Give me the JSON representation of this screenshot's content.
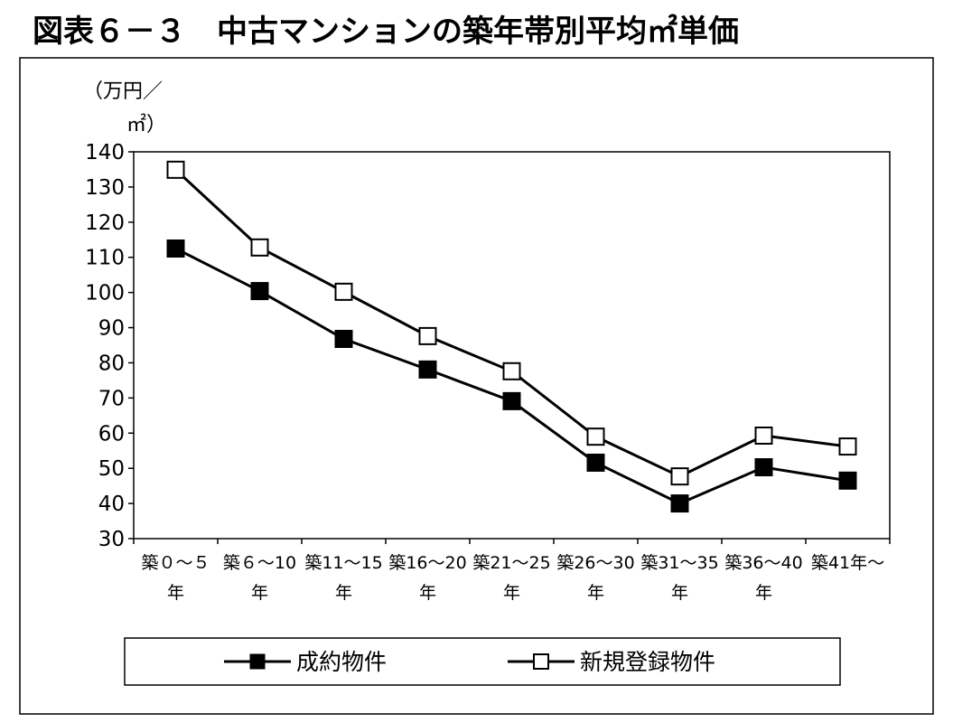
{
  "chart_data": {
    "type": "line",
    "title": "図表６－３　中古マンションの築年帯別平均㎡単価",
    "ylabel": "（万円／㎡）",
    "ylabel_lines": [
      "（万円／",
      "㎡）"
    ],
    "xlabel": "",
    "ylim": [
      30,
      140
    ],
    "yticks": [
      30,
      40,
      50,
      60,
      70,
      80,
      90,
      100,
      110,
      120,
      130,
      140
    ],
    "categories": [
      [
        "築０～５",
        "年"
      ],
      [
        "築６～10",
        "年"
      ],
      [
        "築11～15",
        "年"
      ],
      [
        "築16～20",
        "年"
      ],
      [
        "築21～25",
        "年"
      ],
      [
        "築26～30",
        "年"
      ],
      [
        "築31～35",
        "年"
      ],
      [
        "築36～40",
        "年"
      ],
      [
        "築41年～",
        ""
      ]
    ],
    "grid": false,
    "legend_position": "bottom",
    "series": [
      {
        "name": "成約物件",
        "marker": "filled-square",
        "color": "#000000",
        "values": [
          112.5,
          100.4,
          86.8,
          78.1,
          69.1,
          51.6,
          40.0,
          50.3,
          46.5
        ]
      },
      {
        "name": "新規登録物件",
        "marker": "open-square",
        "color": "#000000",
        "values": [
          134.9,
          112.8,
          100.2,
          87.6,
          77.6,
          59.0,
          47.7,
          59.3,
          56.2
        ]
      }
    ]
  }
}
